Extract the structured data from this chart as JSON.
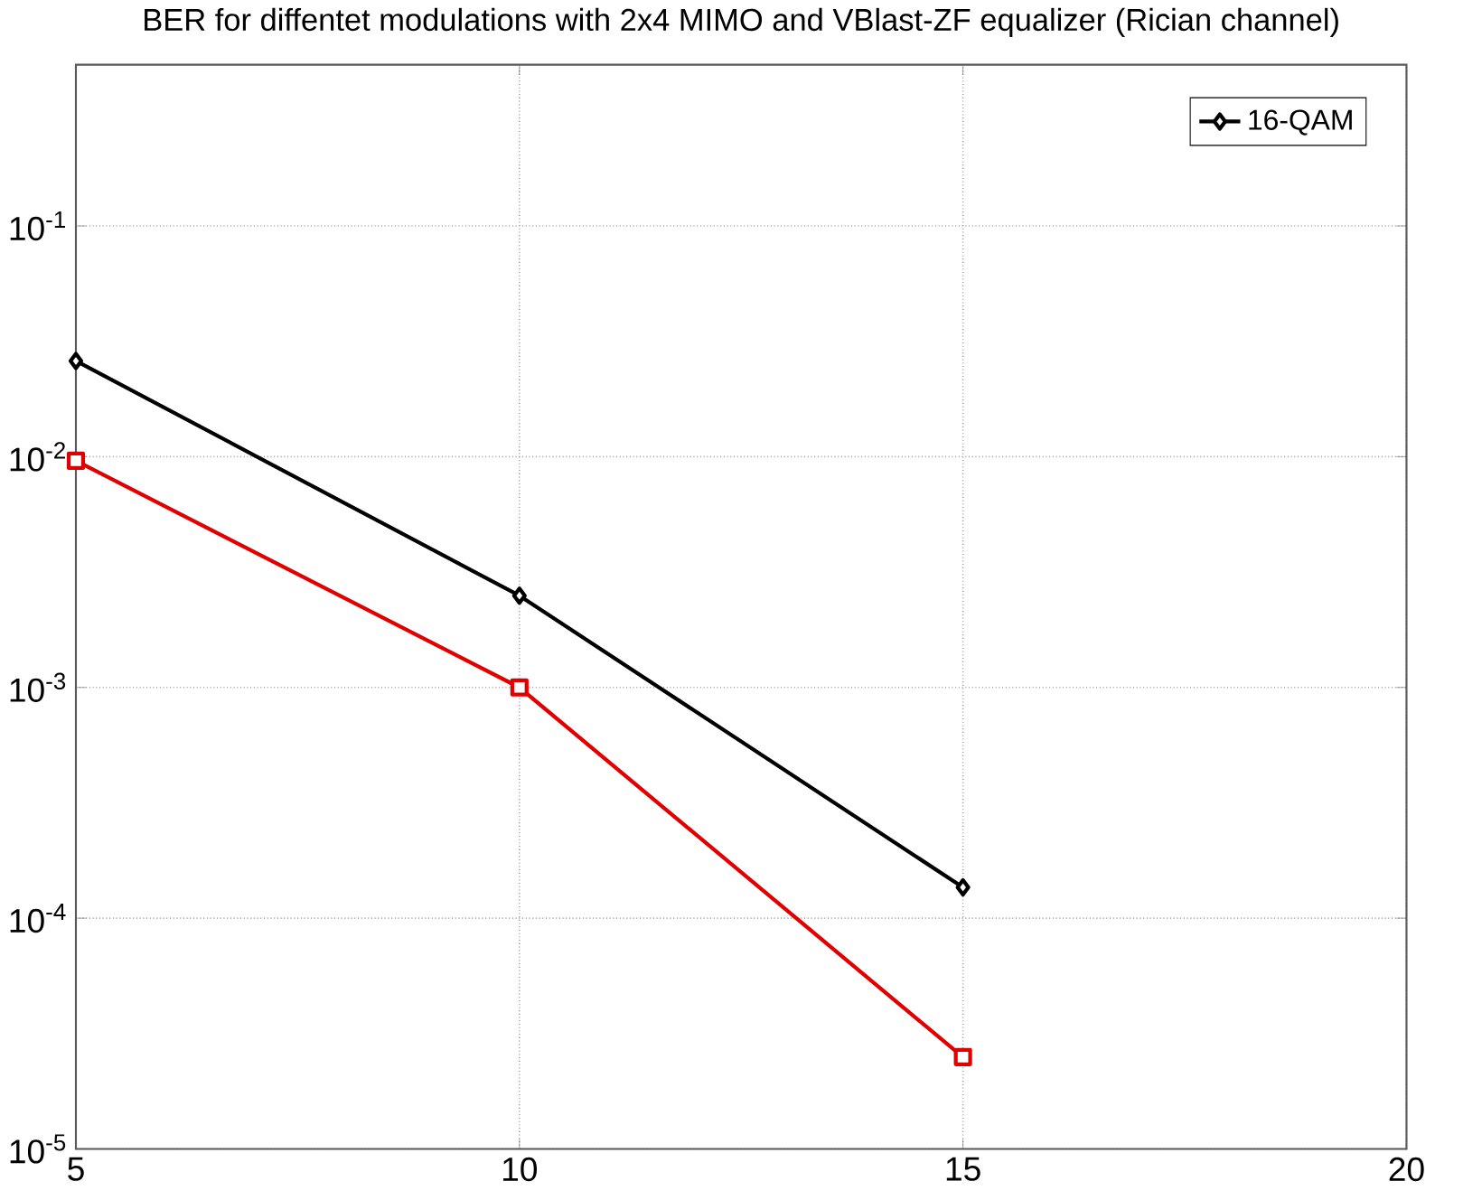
{
  "chart_data": {
    "type": "line",
    "title": "BER for diffentet modulations with 2x4 MIMO and VBlast-ZF equalizer (Rician channel)",
    "log": "y",
    "grid": true,
    "legend": "top right",
    "line_style": "solid",
    "xlim": [
      5,
      20
    ],
    "xticks": [
      5,
      10,
      15,
      20
    ],
    "ylim": [
      1e-05,
      0.5
    ],
    "yticks": [
      {
        "value": 1e-05,
        "label": "10$^{-5}$"
      },
      {
        "value": 0.0001,
        "label": "10$^{-4}$"
      },
      {
        "value": 0.001,
        "label": "10$^{-3}$"
      },
      {
        "value": 0.01,
        "label": "10$^{-2}$"
      },
      {
        "value": 0.1,
        "label": "10$^{-1}$"
      }
    ],
    "x": [
      5,
      10,
      15
    ],
    "series": [
      {
        "name": "16-QAM",
        "color": "#000000",
        "marker": "diamond",
        "values": [
          0.026,
          0.0025,
          0.000136
        ]
      },
      {
        "color": "#e00000",
        "marker": "square",
        "values": [
          0.0096,
          0.001,
          2.5e-05
        ]
      }
    ]
  }
}
